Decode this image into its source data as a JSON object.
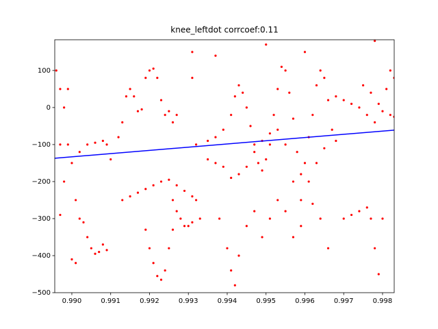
{
  "chart_data": {
    "type": "scatter",
    "title": "knee_leftdot corrcoef:0.11",
    "color": "#ff0000",
    "xlim": [
      0.98956,
      0.9983
    ],
    "ylim": [
      -500,
      183
    ],
    "xticks": [
      {
        "value": 0.99,
        "label": "0.990"
      },
      {
        "value": 0.991,
        "label": "0.991"
      },
      {
        "value": 0.992,
        "label": "0.992"
      },
      {
        "value": 0.993,
        "label": "0.993"
      },
      {
        "value": 0.994,
        "label": "0.994"
      },
      {
        "value": 0.995,
        "label": "0.995"
      },
      {
        "value": 0.996,
        "label": "0.996"
      },
      {
        "value": 0.997,
        "label": "0.997"
      },
      {
        "value": 0.998,
        "label": "0.998"
      }
    ],
    "yticks": [
      {
        "value": -500,
        "label": "−500"
      },
      {
        "value": -400,
        "label": "−400"
      },
      {
        "value": -300,
        "label": "−300"
      },
      {
        "value": -200,
        "label": "−200"
      },
      {
        "value": -100,
        "label": "−100"
      },
      0,
      100
    ],
    "x": [
      0.9896,
      0.9897,
      0.9897,
      0.9897,
      0.9898,
      0.9898,
      0.9899,
      0.9899,
      0.99,
      0.9901,
      0.9902,
      0.9903,
      0.9904,
      0.9905,
      0.9906,
      0.9907,
      0.9908,
      0.9909,
      0.99,
      0.9901,
      0.9902,
      0.9904,
      0.9906,
      0.9908,
      0.9909,
      0.991,
      0.9912,
      0.9913,
      0.9914,
      0.9915,
      0.9916,
      0.9917,
      0.9918,
      0.9919,
      0.992,
      0.9921,
      0.9922,
      0.9923,
      0.9924,
      0.9925,
      0.9926,
      0.9927,
      0.9913,
      0.9915,
      0.9917,
      0.9919,
      0.9921,
      0.9923,
      0.9925,
      0.9927,
      0.9929,
      0.9931,
      0.9919,
      0.992,
      0.9921,
      0.9922,
      0.9923,
      0.9924,
      0.9925,
      0.9926,
      0.9926,
      0.9927,
      0.9928,
      0.9929,
      0.993,
      0.9931,
      0.9931,
      0.9931,
      0.9932,
      0.9932,
      0.9933,
      0.9935,
      0.9937,
      0.9939,
      0.9941,
      0.9942,
      0.9943,
      0.9944,
      0.9945,
      0.9946,
      0.9947,
      0.9948,
      0.9949,
      0.995,
      0.9951,
      0.9952,
      0.9953,
      0.9954,
      0.9955,
      0.9956,
      0.9957,
      0.9958,
      0.9959,
      0.996,
      0.9961,
      0.9962,
      0.9963,
      0.9964,
      0.9965,
      0.9966,
      0.9967,
      0.9968,
      0.9935,
      0.9937,
      0.9939,
      0.9941,
      0.9943,
      0.9945,
      0.9947,
      0.9949,
      0.9951,
      0.9953,
      0.9955,
      0.9957,
      0.9959,
      0.9961,
      0.9963,
      0.9965,
      0.9938,
      0.994,
      0.9941,
      0.9942,
      0.9943,
      0.9945,
      0.9947,
      0.9949,
      0.9951,
      0.9953,
      0.9955,
      0.9957,
      0.9959,
      0.9962,
      0.9964,
      0.9966,
      0.9968,
      0.997,
      0.9972,
      0.9974,
      0.9976,
      0.9978,
      0.998,
      0.9982,
      0.9983,
      0.997,
      0.9972,
      0.9974,
      0.9976,
      0.9977,
      0.9978,
      0.9979,
      0.998,
      0.9975,
      0.9977,
      0.9979,
      0.9981,
      0.9982,
      0.9983,
      0.9937,
      0.995,
      0.996,
      0.9978
    ],
    "values": [
      100,
      50,
      -100,
      -290,
      -200,
      0,
      50,
      -100,
      -150,
      -250,
      -300,
      -310,
      -350,
      -380,
      -395,
      -390,
      -370,
      -385,
      -410,
      -420,
      -120,
      -100,
      -95,
      -90,
      -100,
      -140,
      -80,
      -40,
      30,
      50,
      30,
      -10,
      -5,
      80,
      100,
      105,
      80,
      20,
      -20,
      -10,
      -40,
      -20,
      -250,
      -240,
      -230,
      -220,
      -210,
      -200,
      -195,
      -210,
      -225,
      -240,
      -330,
      -380,
      -420,
      -455,
      -465,
      -440,
      -380,
      -330,
      -250,
      -280,
      -300,
      -320,
      -320,
      -310,
      150,
      80,
      -100,
      -250,
      -300,
      -90,
      -80,
      -60,
      -20,
      30,
      60,
      40,
      0,
      -50,
      -100,
      -150,
      -170,
      -140,
      -100,
      -20,
      50,
      110,
      100,
      40,
      -30,
      -120,
      -180,
      -150,
      -80,
      -20,
      60,
      100,
      80,
      20,
      -60,
      -90,
      -140,
      -150,
      -160,
      -190,
      -180,
      -160,
      -120,
      -90,
      -70,
      -60,
      -100,
      -200,
      -250,
      -200,
      -150,
      -110,
      -300,
      -380,
      -440,
      -480,
      -400,
      -320,
      -280,
      -350,
      -300,
      -250,
      -280,
      -350,
      -320,
      -260,
      -300,
      -380,
      30,
      20,
      10,
      0,
      -20,
      -40,
      -10,
      -20,
      -25,
      -300,
      -290,
      -280,
      -270,
      -300,
      -380,
      -450,
      -300,
      60,
      40,
      10,
      50,
      100,
      80,
      140,
      170,
      150,
      180
    ],
    "fit": {
      "color": "#0000ff",
      "x": [
        0.98956,
        0.9983
      ],
      "values": [
        -137,
        -61
      ]
    }
  }
}
